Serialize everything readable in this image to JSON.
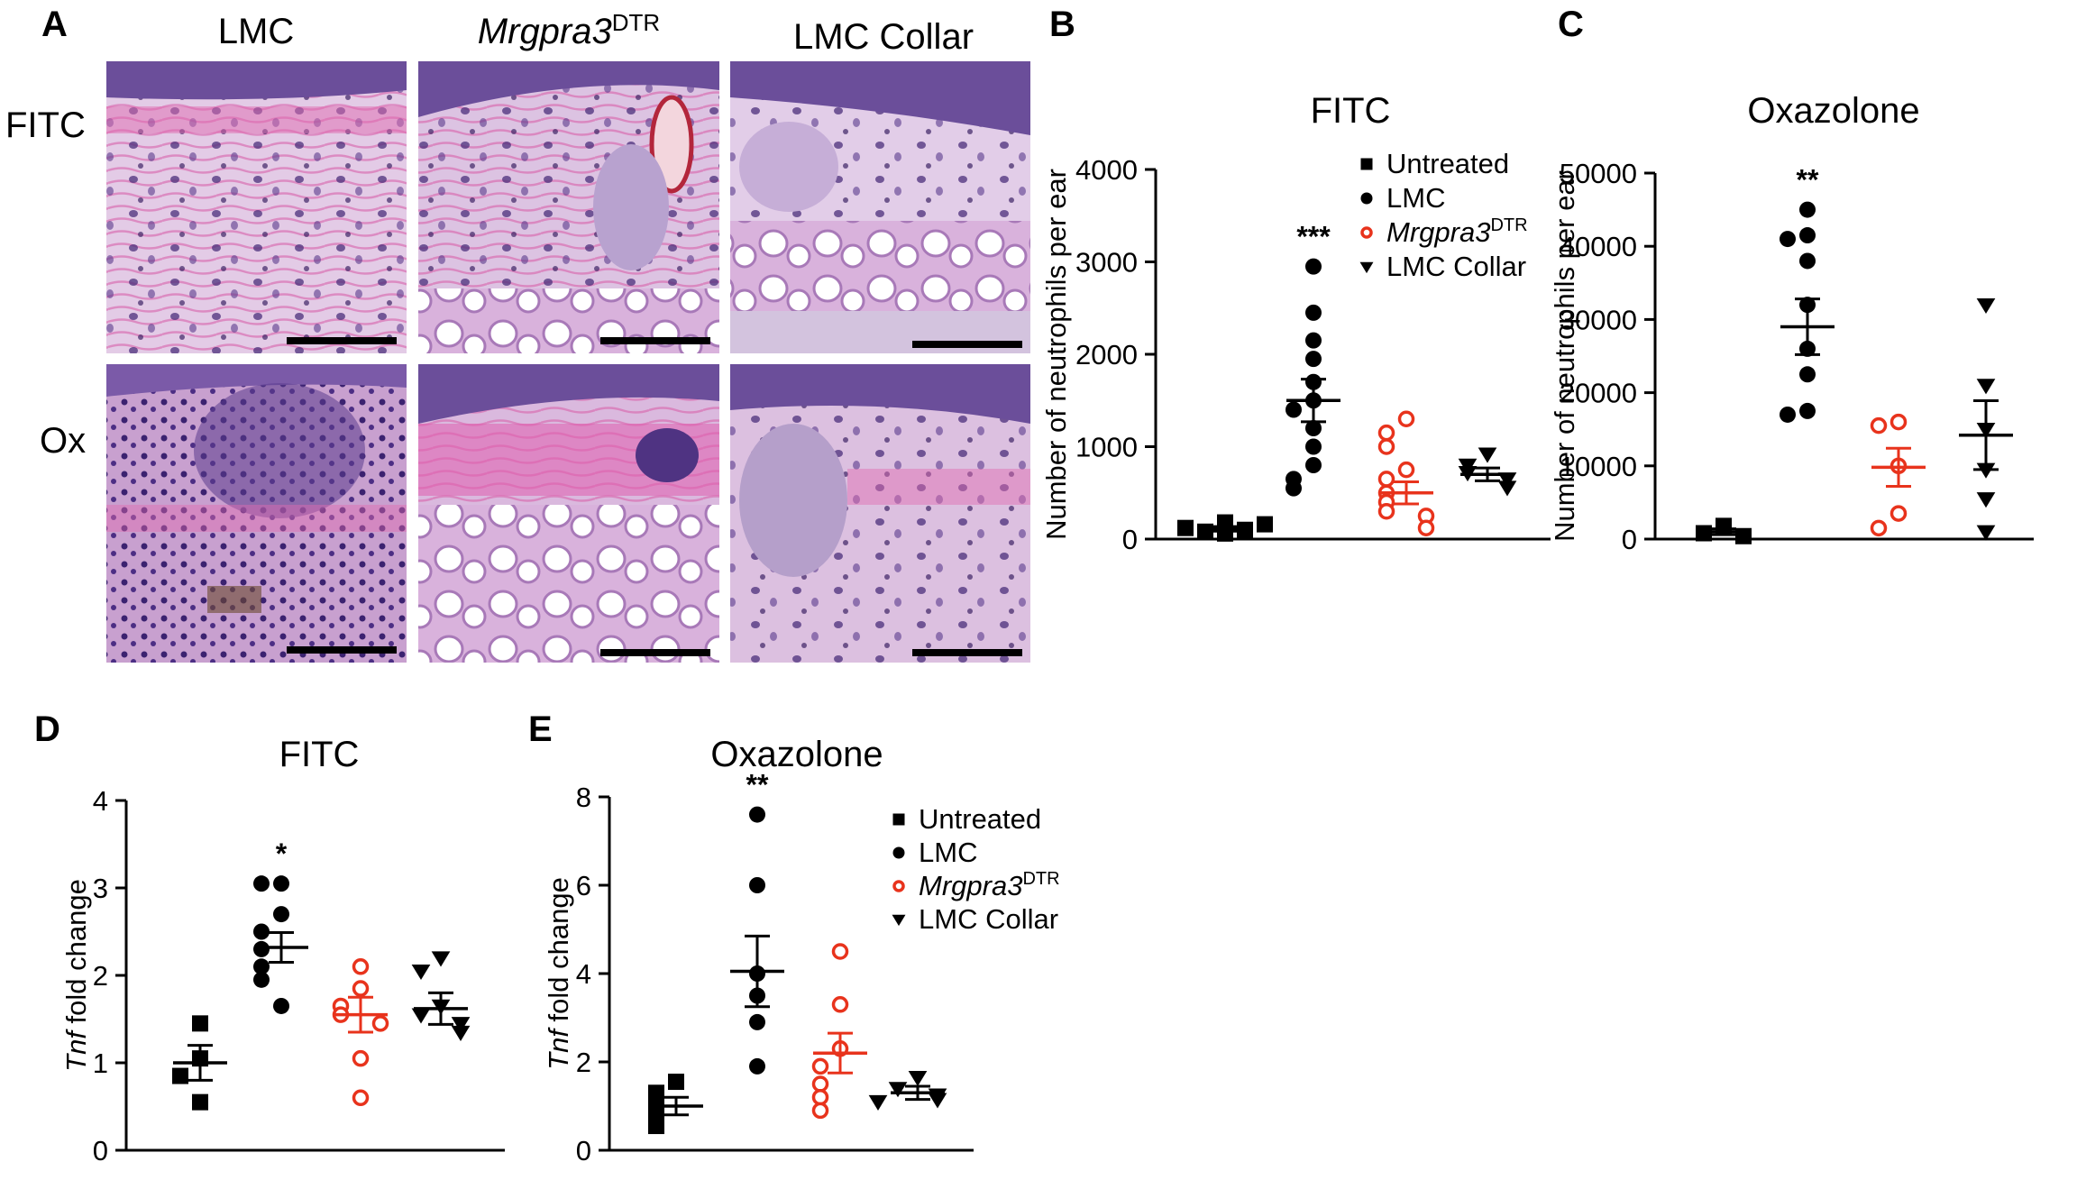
{
  "panel_a": {
    "label": "A",
    "columns": [
      {
        "text": "LMC",
        "italic_part": "",
        "sup": ""
      },
      {
        "text": "",
        "italic_part": "Mrgpra3",
        "sup": "DTR"
      },
      {
        "text": "LMC Collar",
        "italic_part": "",
        "sup": ""
      }
    ],
    "rows": [
      "FITC",
      "Ox"
    ]
  },
  "legend_entries": [
    {
      "marker": "square",
      "color": "#000000",
      "text": "Untreated",
      "italic_part": "",
      "sup": ""
    },
    {
      "marker": "circle",
      "color": "#000000",
      "text": "LMC",
      "italic_part": "",
      "sup": ""
    },
    {
      "marker": "open-circle",
      "color": "#e8331c",
      "text": "",
      "italic_part": "Mrgpra3",
      "sup": "DTR"
    },
    {
      "marker": "triangle-down",
      "color": "#000000",
      "text": "LMC Collar",
      "italic_part": "",
      "sup": ""
    }
  ],
  "colors": {
    "black": "#000000",
    "red": "#e8331c"
  },
  "chart_data": [
    {
      "panel": "B",
      "type": "scatter",
      "title": "FITC",
      "ylabel": "Number of neutrophils per ear",
      "ylim": [
        0,
        4000
      ],
      "yticks": [
        "0",
        "1000",
        "2000",
        "3000",
        "4000"
      ],
      "legend": "top-right",
      "groups": [
        {
          "name": "Untreated",
          "marker": "square",
          "values": [
            60,
            80,
            100,
            120,
            160,
            180
          ],
          "mean": 110,
          "sem": 25,
          "significance": ""
        },
        {
          "name": "LMC",
          "marker": "circle",
          "values": [
            2950,
            2450,
            2150,
            1950,
            1700,
            1500,
            1400,
            1200,
            1000,
            800,
            650,
            550
          ],
          "mean": 1500,
          "sem": 230,
          "significance": "***"
        },
        {
          "name": "Mrgpra3 DTR",
          "marker": "open-circle",
          "values": [
            1300,
            1150,
            1000,
            750,
            650,
            500,
            400,
            300,
            250,
            120
          ],
          "mean": 500,
          "sem": 120,
          "significance": ""
        },
        {
          "name": "LMC Collar",
          "marker": "triangle-down",
          "values": [
            920,
            800,
            720,
            650,
            560
          ],
          "mean": 700,
          "sem": 70,
          "significance": ""
        }
      ]
    },
    {
      "panel": "C",
      "type": "scatter",
      "title": "Oxazolone",
      "ylabel": "Number of neutrophils per ear",
      "ylim": [
        0,
        50000
      ],
      "yticks": [
        "0",
        "10000",
        "20000",
        "30000",
        "40000",
        "50000"
      ],
      "groups": [
        {
          "name": "Untreated",
          "marker": "square",
          "values": [
            1800,
            800,
            400
          ],
          "mean": 1000,
          "sem": 400,
          "significance": ""
        },
        {
          "name": "LMC",
          "marker": "circle",
          "values": [
            45000,
            41500,
            41000,
            38000,
            32000,
            26000,
            22500,
            17500,
            17000
          ],
          "mean": 29000,
          "sem": 3800,
          "significance": "**"
        },
        {
          "name": "Mrgpra3 DTR",
          "marker": "open-circle",
          "values": [
            16000,
            15500,
            10000,
            3500,
            1500
          ],
          "mean": 9800,
          "sem": 2600,
          "significance": ""
        },
        {
          "name": "LMC Collar",
          "marker": "triangle-down",
          "values": [
            32000,
            21000,
            15000,
            9500,
            5500,
            1000
          ],
          "mean": 14200,
          "sem": 4700,
          "significance": ""
        }
      ]
    },
    {
      "panel": "D",
      "type": "scatter",
      "title": "FITC",
      "ylabel_italic": "Tnf",
      "ylabel": " fold change",
      "ylim": [
        0,
        4
      ],
      "yticks": [
        "0",
        "1",
        "2",
        "3",
        "4"
      ],
      "groups": [
        {
          "name": "Untreated",
          "marker": "square",
          "values": [
            1.45,
            1.05,
            0.85,
            0.55
          ],
          "mean": 1.0,
          "sem": 0.2,
          "significance": ""
        },
        {
          "name": "LMC",
          "marker": "circle",
          "values": [
            3.05,
            3.05,
            2.7,
            2.5,
            2.3,
            2.1,
            1.95,
            1.65
          ],
          "mean": 2.32,
          "sem": 0.17,
          "significance": "*"
        },
        {
          "name": "Mrgpra3 DTR",
          "marker": "open-circle",
          "values": [
            2.1,
            1.85,
            1.65,
            1.55,
            1.45,
            1.05,
            0.6
          ],
          "mean": 1.55,
          "sem": 0.2,
          "significance": ""
        },
        {
          "name": "LMC Collar",
          "marker": "triangle-down",
          "values": [
            2.2,
            2.05,
            1.65,
            1.55,
            1.45,
            1.35
          ],
          "mean": 1.62,
          "sem": 0.18,
          "significance": ""
        }
      ]
    },
    {
      "panel": "E",
      "type": "scatter",
      "title": "Oxazolone",
      "ylabel_italic": "Tnf",
      "ylabel": " fold change",
      "ylim": [
        0,
        8
      ],
      "yticks": [
        "0",
        "2",
        "4",
        "6",
        "8"
      ],
      "legend": "top-right",
      "groups": [
        {
          "name": "Untreated",
          "marker": "square",
          "values": [
            1.55,
            1.3,
            1.0,
            0.75,
            0.55
          ],
          "mean": 1.0,
          "sem": 0.2,
          "significance": ""
        },
        {
          "name": "LMC",
          "marker": "circle",
          "values": [
            7.6,
            6.0,
            4.0,
            3.5,
            2.9,
            1.9
          ],
          "mean": 4.05,
          "sem": 0.8,
          "significance": "**"
        },
        {
          "name": "Mrgpra3 DTR",
          "marker": "open-circle",
          "values": [
            4.5,
            3.3,
            2.3,
            1.9,
            1.5,
            1.2,
            0.9
          ],
          "mean": 2.2,
          "sem": 0.45,
          "significance": ""
        },
        {
          "name": "LMC Collar",
          "marker": "triangle-down",
          "values": [
            1.65,
            1.4,
            1.25,
            1.15,
            1.1
          ],
          "mean": 1.3,
          "sem": 0.15,
          "significance": ""
        }
      ]
    }
  ]
}
